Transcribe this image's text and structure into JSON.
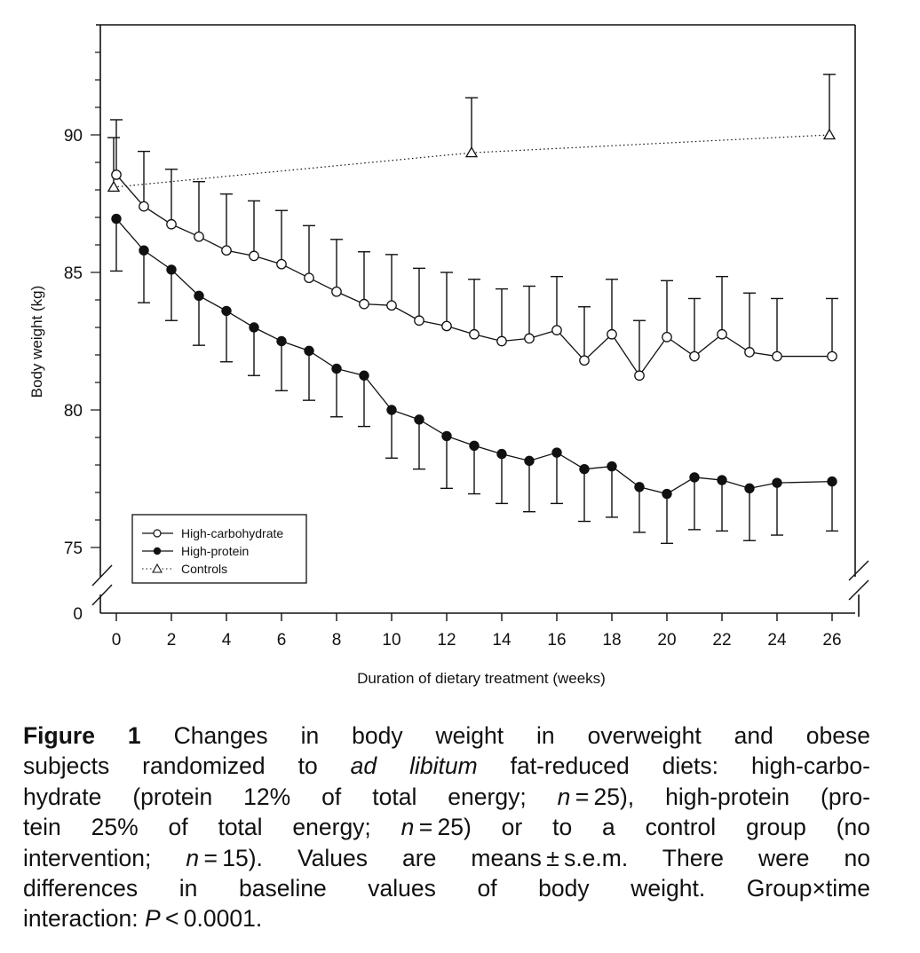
{
  "chart_data": {
    "type": "line",
    "title": "",
    "xlabel": "Duration of dietary treatment (weeks)",
    "ylabel": "Body weight (kg)",
    "xlim": [
      -0.5,
      27
    ],
    "ylim": [
      74,
      94
    ],
    "y_axis_break": true,
    "x_ticks": [
      "0",
      "2",
      "4",
      "6",
      "8",
      "10",
      "12",
      "14",
      "16",
      "18",
      "20",
      "22",
      "24",
      "26"
    ],
    "y_ticks": [
      "0",
      "75",
      "80",
      "85",
      "90"
    ],
    "legend_position": "bottom-left",
    "series": [
      {
        "name": "High-carbohydrate",
        "marker": "open-circle",
        "line": "solid",
        "error": "upper",
        "x": [
          0,
          1,
          2,
          3,
          4,
          5,
          6,
          7,
          8,
          9,
          10,
          11,
          12,
          13,
          14,
          15,
          16,
          17,
          18,
          19,
          20,
          21,
          22,
          23,
          24,
          26
        ],
        "values": [
          88.55,
          87.4,
          86.75,
          86.3,
          85.8,
          85.6,
          85.3,
          84.8,
          84.3,
          83.85,
          83.8,
          83.25,
          83.05,
          82.75,
          82.5,
          82.6,
          82.9,
          81.8,
          82.75,
          81.25,
          82.65,
          81.95,
          82.75,
          82.1,
          81.95,
          81.95
        ],
        "error_bound": [
          90.55,
          89.4,
          88.75,
          88.3,
          87.85,
          87.6,
          87.25,
          86.7,
          86.2,
          85.75,
          85.65,
          85.15,
          85.0,
          84.75,
          84.4,
          84.5,
          84.85,
          83.75,
          84.75,
          83.25,
          84.7,
          84.05,
          84.85,
          84.25,
          84.05,
          84.05
        ]
      },
      {
        "name": "High-protein",
        "marker": "filled-circle",
        "line": "solid",
        "error": "lower",
        "x": [
          0,
          1,
          2,
          3,
          4,
          5,
          6,
          7,
          8,
          9,
          10,
          11,
          12,
          13,
          14,
          15,
          16,
          17,
          18,
          19,
          20,
          21,
          22,
          23,
          24,
          26
        ],
        "values": [
          86.95,
          85.8,
          85.1,
          84.15,
          83.6,
          83.0,
          82.5,
          82.15,
          81.5,
          81.25,
          80.0,
          79.65,
          79.05,
          78.7,
          78.4,
          78.15,
          78.45,
          77.85,
          77.95,
          77.2,
          76.95,
          77.55,
          77.45,
          77.15,
          77.35,
          77.4
        ],
        "error_bound": [
          85.05,
          83.9,
          83.25,
          82.35,
          81.75,
          81.25,
          80.7,
          80.35,
          79.75,
          79.4,
          78.25,
          77.85,
          77.15,
          76.95,
          76.6,
          76.3,
          76.6,
          75.95,
          76.1,
          75.55,
          75.15,
          75.65,
          75.6,
          75.25,
          75.45,
          75.6
        ]
      },
      {
        "name": "Controls",
        "marker": "open-triangle",
        "line": "dotted",
        "error": "upper",
        "x": [
          0,
          13,
          26
        ],
        "values": [
          88.1,
          89.35,
          90.0
        ],
        "error_bound": [
          89.9,
          91.35,
          92.2
        ]
      }
    ]
  },
  "caption": {
    "lines": [
      [
        {
          "t": "Figure 1",
          "s": "bold"
        },
        {
          "t": "  Changes in body weight in overweight and obese",
          "s": ""
        }
      ],
      [
        {
          "t": "subjects randomized to ",
          "s": ""
        },
        {
          "t": "ad libitum",
          "s": "italic"
        },
        {
          "t": " fat-reduced diets: high-carbo-",
          "s": ""
        }
      ],
      [
        {
          "t": "hydrate (protein 12% of total energy; ",
          "s": ""
        },
        {
          "t": "n",
          "s": "italic"
        },
        {
          "t": " = 25), high-protein (pro-",
          "s": ""
        }
      ],
      [
        {
          "t": "tein 25% of total energy; ",
          "s": ""
        },
        {
          "t": "n",
          "s": "italic"
        },
        {
          "t": " = 25) or to a control group (no",
          "s": ""
        }
      ],
      [
        {
          "t": "intervention; ",
          "s": ""
        },
        {
          "t": "n",
          "s": "italic"
        },
        {
          "t": " = 15). Values are means ± s.e.m. There were no",
          "s": ""
        }
      ],
      [
        {
          "t": "differences in baseline values of body weight. Group×time",
          "s": ""
        }
      ],
      [
        {
          "t": "interaction: ",
          "s": ""
        },
        {
          "t": "P",
          "s": "italic"
        },
        {
          "t": " < 0.0001.",
          "s": ""
        }
      ]
    ]
  }
}
